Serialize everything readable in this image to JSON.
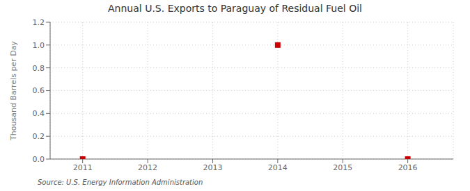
{
  "chart_data": {
    "type": "scatter",
    "title": "Annual U.S. Exports to Paraguay of Residual Fuel Oil",
    "y_label": "Thousand Barrels per Day",
    "annotations": [
      "Source: U.S. Energy Information Administration"
    ],
    "x": [
      2011,
      2014,
      2016
    ],
    "values": [
      0.0,
      1.0,
      0.0
    ],
    "color": "#cc0000",
    "marker": "square",
    "xlim": [
      2010.5,
      2016.7
    ],
    "ylim": [
      0.0,
      1.2
    ],
    "xticks": [
      2011,
      2012,
      2013,
      2014,
      2015,
      2016
    ],
    "yticks": [
      {
        "value": 0.0,
        "label": "0.0"
      },
      0.2,
      0.4,
      0.6,
      0.8,
      {
        "value": 1.0,
        "label": "1.0"
      },
      1.2
    ],
    "grid": true
  }
}
